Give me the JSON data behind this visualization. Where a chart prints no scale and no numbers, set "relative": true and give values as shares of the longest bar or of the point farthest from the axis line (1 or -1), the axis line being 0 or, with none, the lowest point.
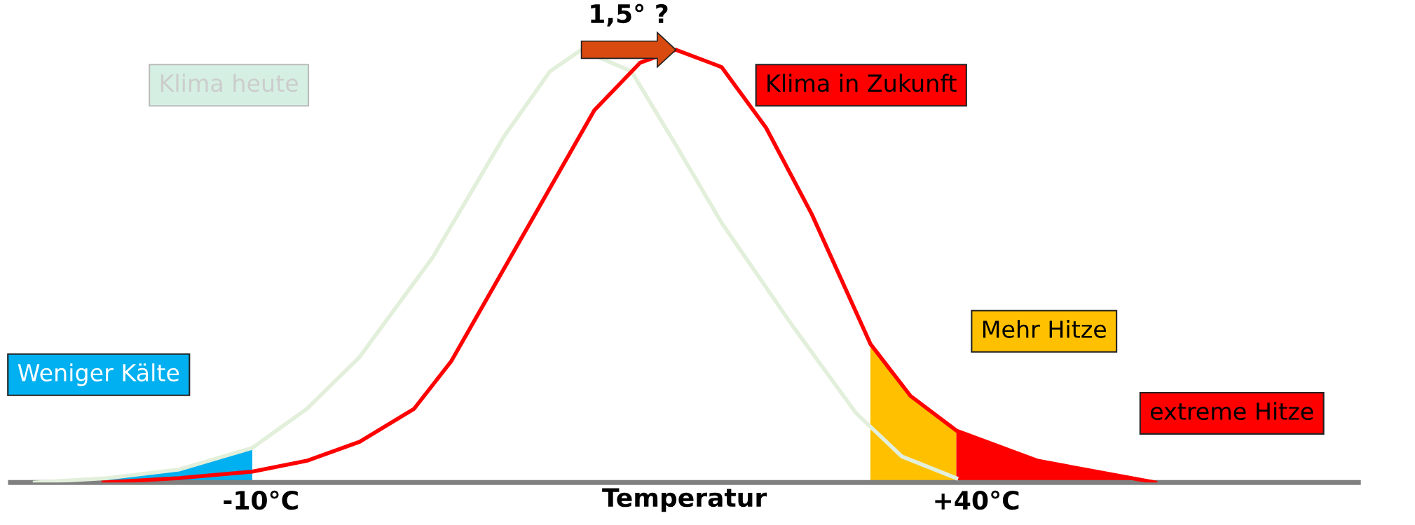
{
  "chart_data": {
    "type": "line",
    "relative": true,
    "xlabel": "Temperatur",
    "xlim": [
      -27.5,
      66.7
    ],
    "xticks": [
      {
        "value": -10,
        "label": "-10°C"
      },
      {
        "value": 40,
        "label": "+40°C"
      }
    ],
    "x": [
      -25.8,
      -20.7,
      -15.7,
      -10.6,
      -6.8,
      -3.1,
      2.0,
      7.0,
      10.2,
      12.4,
      15.9,
      19.0,
      22.2,
      27.2,
      31.6,
      34.8,
      38.6
    ],
    "series": [
      {
        "name": "Weniger Kälte",
        "type": "area",
        "color": "#00b0f0",
        "x": [
          -21.0,
          -15.7,
          -10.6
        ],
        "values": [
          0.01,
          0.03,
          0.08
        ]
      },
      {
        "name": "Mehr Hitze",
        "type": "area",
        "color": "#ffc000",
        "x": [
          32.6,
          35.4,
          38.6
        ],
        "values": [
          0.32,
          0.2,
          0.12
        ]
      },
      {
        "name": "extreme Hitze",
        "type": "area",
        "color": "#ff0000",
        "x": [
          38.6,
          44.3,
          52.5
        ],
        "values": [
          0.12,
          0.05,
          0
        ]
      },
      {
        "name": "Klima heute",
        "color": "#e2efda",
        "values": [
          0,
          0.01,
          0.03,
          0.08,
          0.17,
          0.29,
          0.52,
          0.8,
          0.95,
          1,
          0.95,
          0.78,
          0.6,
          0.36,
          0.16,
          0.06,
          0.01
        ]
      },
      {
        "name": "Klima in Zukunft",
        "color": "#ff0000",
        "x": [
          -21.0,
          -15.7,
          -10.6,
          -6.8,
          -3.1,
          0.7,
          3.3,
          8.3,
          13.3,
          16.5,
          19.0,
          22.2,
          25.3,
          28.5,
          32.6,
          35.4,
          38.6,
          44.3,
          52.5
        ],
        "values": [
          0,
          0.01,
          0.025,
          0.05,
          0.094,
          0.17,
          0.28,
          0.57,
          0.86,
          0.97,
          1,
          0.96,
          0.82,
          0.62,
          0.32,
          0.2,
          0.12,
          0.05,
          0
        ]
      }
    ],
    "annotations": [
      "1,5° ?"
    ],
    "grid": false,
    "legend": false
  }
}
